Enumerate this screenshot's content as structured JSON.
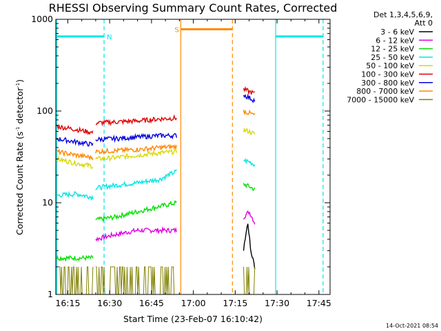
{
  "chart_data": {
    "type": "line",
    "title": "RHESSI Observing Summary Count Rates, Corrected",
    "xlabel": "Start Time (23-Feb-07 16:10:42)",
    "ylabel_main": "Corrected Count Rate (s",
    "ylabel_sup1": "-1",
    "ylabel_mid": " detector",
    "ylabel_sup2": "-1",
    "ylabel_end": ")",
    "y_scale": "log",
    "ylim": [
      1,
      1000
    ],
    "xlim": [
      "16:10:42",
      "17:49:00"
    ],
    "xticks": [
      "16:15",
      "16:30",
      "16:45",
      "17:00",
      "17:15",
      "17:30",
      "17:45"
    ],
    "xticks_min": [
      975,
      990,
      1005,
      1020,
      1035,
      1050,
      1065
    ],
    "yticks": [
      1,
      10,
      100,
      1000
    ],
    "ytick_labels": [
      "1",
      "10",
      "100",
      "1000"
    ],
    "legend_header_1": "Det 1,3,4,5,6,9,",
    "legend_header_2": "Att 0",
    "legend_position": "top-right",
    "series": [
      {
        "name": "3 - 6 keV",
        "color": "#000000",
        "segments": [
          [
            [
              1038.0,
              3.0
            ],
            [
              1039.5,
              6.0
            ],
            [
              1040.5,
              3.0
            ],
            [
              1042.0,
              2.0
            ]
          ]
        ]
      },
      {
        "name": "6 - 12 keV",
        "color": "#e000e0",
        "segments": [
          [
            [
              985.0,
              4.0
            ],
            [
              992.0,
              4.5
            ],
            [
              1000.0,
              5.0
            ],
            [
              1014.0,
              5.0
            ]
          ],
          [
            [
              1038.0,
              7.0
            ],
            [
              1040.0,
              8.0
            ],
            [
              1042.0,
              6.0
            ]
          ]
        ]
      },
      {
        "name": "12 - 25 keV",
        "color": "#00e000",
        "segments": [
          [
            [
              971.0,
              2.5
            ],
            [
              984.0,
              2.5
            ]
          ],
          [
            [
              985.0,
              6.5
            ],
            [
              992.0,
              7.0
            ],
            [
              1000.0,
              8.0
            ],
            [
              1014.0,
              10.0
            ]
          ],
          [
            [
              1038.0,
              16.0
            ],
            [
              1040.0,
              15.0
            ],
            [
              1042.0,
              14.0
            ]
          ]
        ]
      },
      {
        "name": "25 - 50 keV",
        "color": "#00e5e5",
        "segments": [
          [
            [
              971.0,
              12.0
            ],
            [
              978.0,
              12.5
            ],
            [
              984.0,
              11.5
            ]
          ],
          [
            [
              985.0,
              14.5
            ],
            [
              992.0,
              15.5
            ],
            [
              1000.0,
              16.5
            ],
            [
              1008.0,
              18.0
            ],
            [
              1014.0,
              22.0
            ]
          ],
          [
            [
              1038.0,
              29.0
            ],
            [
              1040.0,
              28.0
            ],
            [
              1042.0,
              26.0
            ]
          ]
        ]
      },
      {
        "name": "50 - 100 keV",
        "color": "#d8d800",
        "segments": [
          [
            [
              971.0,
              30.0
            ],
            [
              978.0,
              27.0
            ],
            [
              984.0,
              25.0
            ]
          ],
          [
            [
              985.0,
              30.0
            ],
            [
              992.0,
              31.0
            ],
            [
              1000.0,
              33.0
            ],
            [
              1008.0,
              35.0
            ],
            [
              1014.0,
              36.0
            ]
          ],
          [
            [
              1038.0,
              62.0
            ],
            [
              1040.0,
              60.0
            ],
            [
              1042.0,
              56.0
            ]
          ]
        ]
      },
      {
        "name": "100 - 300 keV",
        "color": "#e00000",
        "segments": [
          [
            [
              971.0,
              68.0
            ],
            [
              978.0,
              63.0
            ],
            [
              984.0,
              58.0
            ]
          ],
          [
            [
              985.0,
              74.0
            ],
            [
              992.0,
              76.0
            ],
            [
              1000.0,
              78.0
            ],
            [
              1008.0,
              82.0
            ],
            [
              1014.0,
              84.0
            ]
          ],
          [
            [
              1038.0,
              172.0
            ],
            [
              1040.0,
              163.0
            ],
            [
              1042.0,
              155.0
            ]
          ]
        ]
      },
      {
        "name": "300 - 800 keV",
        "color": "#0000e0",
        "segments": [
          [
            [
              971.0,
              50.0
            ],
            [
              978.0,
              46.0
            ],
            [
              984.0,
              43.0
            ]
          ],
          [
            [
              985.0,
              49.0
            ],
            [
              992.0,
              50.0
            ],
            [
              1000.0,
              52.0
            ],
            [
              1008.0,
              54.0
            ],
            [
              1014.0,
              54.0
            ]
          ],
          [
            [
              1038.0,
              150.0
            ],
            [
              1040.0,
              140.0
            ],
            [
              1042.0,
              130.0
            ]
          ]
        ]
      },
      {
        "name": "800 - 7000 keV",
        "color": "#ff8800",
        "segments": [
          [
            [
              971.0,
              36.0
            ],
            [
              978.0,
              33.0
            ],
            [
              984.0,
              31.0
            ]
          ],
          [
            [
              985.0,
              36.0
            ],
            [
              992.0,
              37.0
            ],
            [
              1000.0,
              38.0
            ],
            [
              1008.0,
              40.0
            ],
            [
              1014.0,
              41.0
            ]
          ],
          [
            [
              1038.0,
              100.0
            ],
            [
              1040.0,
              95.0
            ],
            [
              1042.0,
              90.0
            ]
          ]
        ]
      },
      {
        "name": "7000 - 15000 keV",
        "color": "#808000",
        "segments": [
          [
            [
              971.0,
              1.5
            ],
            [
              978.0,
              1.5
            ],
            [
              984.0,
              1.5
            ]
          ],
          [
            [
              985.0,
              1.5
            ],
            [
              995.0,
              1.5
            ],
            [
              1005.0,
              1.5
            ],
            [
              1014.0,
              1.5
            ]
          ],
          [
            [
              1038.0,
              1.5
            ],
            [
              1040.0,
              1.5
            ],
            [
              1042.0,
              1.5
            ]
          ]
        ]
      }
    ],
    "annotations": [
      {
        "label": "N",
        "color": "#00e5e5",
        "bar": [
          971.0,
          988.0
        ],
        "bar_y": 650,
        "boundary": 988.0,
        "style": "dashed"
      },
      {
        "label": "S",
        "color": "#ff8800",
        "bar": [
          1015.5,
          1034.0
        ],
        "bar_y": 780,
        "boundary": 1034.0,
        "style": "dashed"
      },
      {
        "label": "",
        "color": "#00e5e5",
        "bar": [
          1049.5,
          1066.5
        ],
        "bar_y": 650,
        "boundary": 1066.5,
        "style": "dashed"
      }
    ],
    "vertical_lines": [
      {
        "x": 971.0,
        "color": "#00e5e5"
      },
      {
        "x": 1015.5,
        "color": "#ff8800"
      },
      {
        "x": 1049.5,
        "color": "#00e5e5"
      }
    ]
  },
  "footer_timestamp": "14-Oct-2021 08:54"
}
